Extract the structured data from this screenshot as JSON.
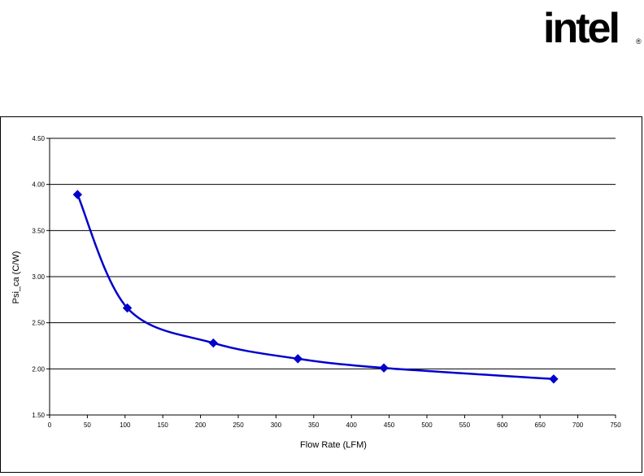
{
  "logo": {
    "text": "intel",
    "mark": "®"
  },
  "chart_data": {
    "type": "line",
    "title": "",
    "xlabel": "Flow Rate (LFM)",
    "ylabel": "Psi_ca (C/W)",
    "xlim": [
      0,
      750
    ],
    "ylim": [
      1.5,
      4.5
    ],
    "x_ticks": [
      "0",
      "50",
      "100",
      "150",
      "200",
      "250",
      "300",
      "350",
      "400",
      "450",
      "500",
      "550",
      "600",
      "650",
      "700",
      "750"
    ],
    "y_ticks": [
      "1.50",
      "2.00",
      "2.50",
      "3.00",
      "3.50",
      "4.00",
      "4.50"
    ],
    "grid": "horizontal",
    "series": [
      {
        "color": "#0000CC",
        "marker": "diamond",
        "x": [
          37,
          103,
          217,
          329,
          443,
          668
        ],
        "y": [
          3.89,
          2.66,
          2.28,
          2.11,
          2.01,
          1.89
        ]
      }
    ]
  }
}
